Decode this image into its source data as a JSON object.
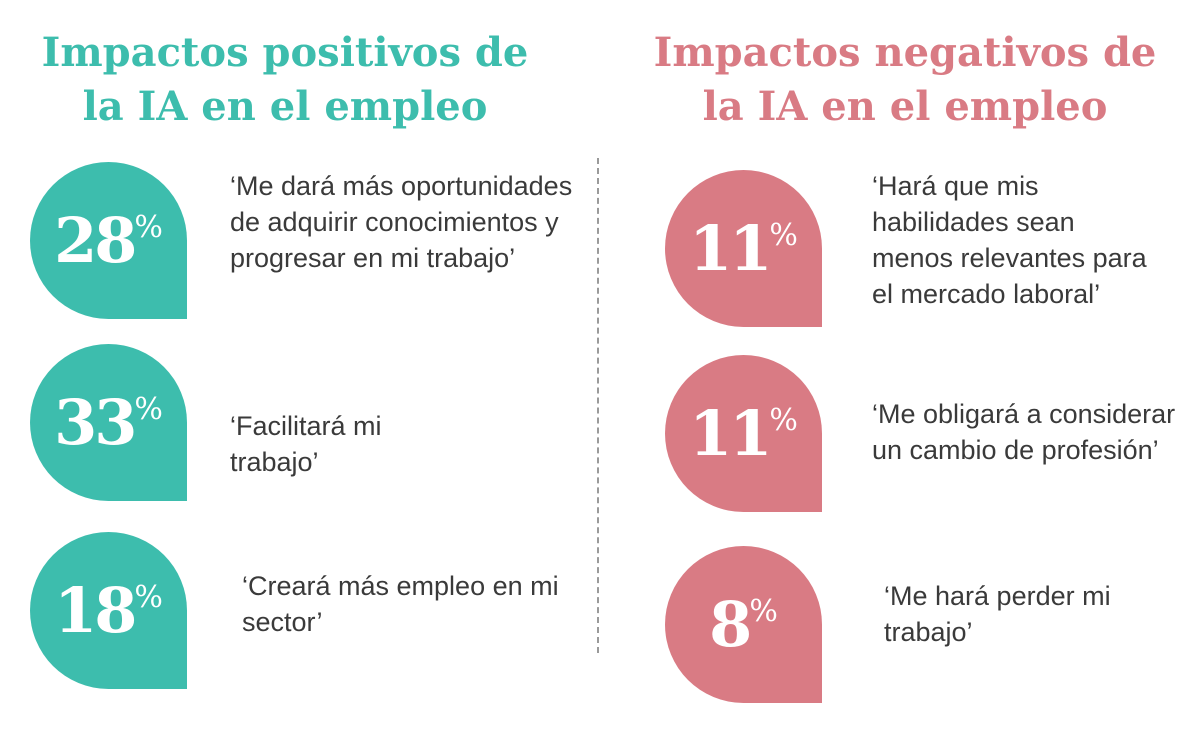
{
  "colors": {
    "positive": "#3dbdad",
    "negative": "#d97b84"
  },
  "positive": {
    "title_line1": "Impactos positivos de",
    "title_line2": "la IA en el empleo",
    "items": [
      {
        "value": "28",
        "unit": "%",
        "quote": "‘Me dará más oportunidades de adquirir conocimientos y progresar en mi trabajo’"
      },
      {
        "value": "33",
        "unit": "%",
        "quote": "‘Facilitará mi trabajo’"
      },
      {
        "value": "18",
        "unit": "%",
        "quote": "‘Creará más empleo en mi sector’"
      }
    ]
  },
  "negative": {
    "title_line1": "Impactos negativos de",
    "title_line2": "la IA en el empleo",
    "items": [
      {
        "value": "11",
        "unit": "%",
        "quote": "‘Hará que mis habilidades sean menos relevantes para el mercado laboral’"
      },
      {
        "value": "11",
        "unit": "%",
        "quote": "‘Me obligará a considerar un cambio de profesión’"
      },
      {
        "value": "8",
        "unit": "%",
        "quote": "‘Me hará perder mi trabajo’"
      }
    ]
  }
}
